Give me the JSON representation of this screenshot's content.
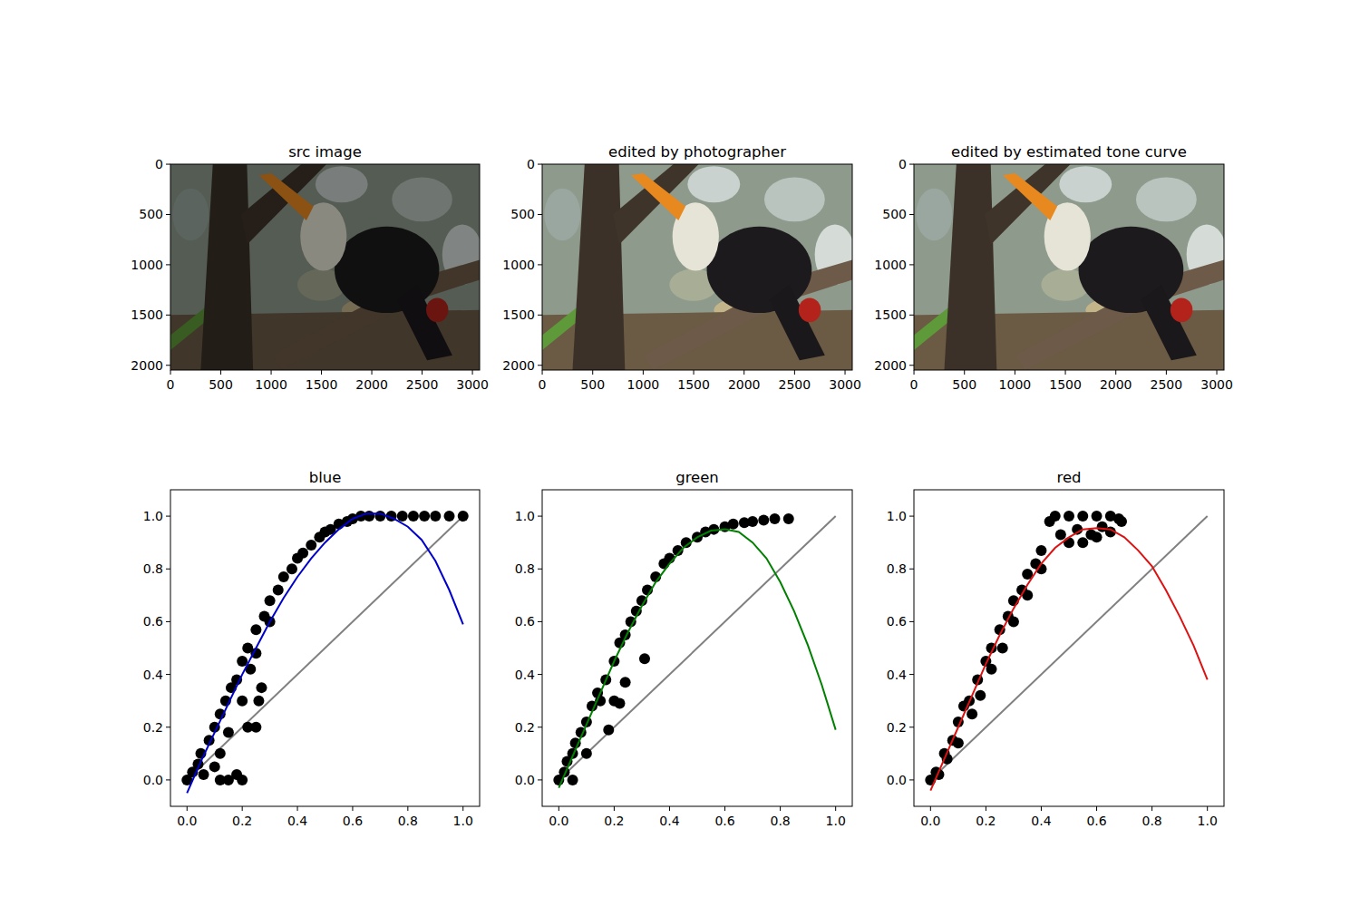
{
  "chart_data": [
    {
      "type": "image",
      "title": "src image",
      "xlim": [
        -0.5,
        3071.5
      ],
      "ylim": [
        2047.5,
        -0.5
      ],
      "xticks": [
        0,
        500,
        1000,
        1500,
        2000,
        2500,
        3000
      ],
      "yticks": [
        0,
        500,
        1000,
        1500,
        2000
      ]
    },
    {
      "type": "image",
      "title": "edited by photographer",
      "xlim": [
        -0.5,
        3071.5
      ],
      "ylim": [
        2047.5,
        -0.5
      ],
      "xticks": [
        0,
        500,
        1000,
        1500,
        2000,
        2500,
        3000
      ],
      "yticks": [
        0,
        500,
        1000,
        1500,
        2000
      ]
    },
    {
      "type": "image",
      "title": "edited by estimated tone curve",
      "xlim": [
        -0.5,
        3071.5
      ],
      "ylim": [
        2047.5,
        -0.5
      ],
      "xticks": [
        0,
        500,
        1000,
        1500,
        2000,
        2500,
        3000
      ],
      "yticks": [
        0,
        500,
        1000,
        1500,
        2000
      ]
    },
    {
      "type": "scatter",
      "title": "blue",
      "xlim": [
        -0.06,
        1.06
      ],
      "ylim": [
        -0.1,
        1.1
      ],
      "xticks": [
        {
          "value": 0,
          "label": "0.0"
        },
        0.2,
        0.4,
        0.6,
        0.8,
        {
          "value": 1,
          "label": "1.0"
        }
      ],
      "yticks": [
        {
          "value": 0,
          "label": "0.0"
        },
        0.2,
        0.4,
        0.6,
        0.8,
        {
          "value": 1,
          "label": "1.0"
        }
      ],
      "series": [
        {
          "type": "scatter",
          "color": "#000000",
          "marker": "circle",
          "x": [
            0,
            0.02,
            0.04,
            0.05,
            0.06,
            0.08,
            0.1,
            0.1,
            0.12,
            0.12,
            0.14,
            0.15,
            0.16,
            0.18,
            0.2,
            0.2,
            0.22,
            0.23,
            0.25,
            0.25,
            0.28,
            0.3,
            0.3,
            0.33,
            0.35,
            0.38,
            0.4,
            0.42,
            0.45,
            0.48,
            0.5,
            0.52,
            0.55,
            0.58,
            0.6,
            0.63,
            0.66,
            0.7,
            0.74,
            0.78,
            0.82,
            0.86,
            0.9,
            0.95,
            1.0,
            0.12,
            0.15,
            0.18,
            0.2,
            0.22,
            0.25,
            0.27,
            0.26
          ],
          "values": [
            0.0,
            0.03,
            0.06,
            0.1,
            0.02,
            0.15,
            0.2,
            0.05,
            0.25,
            0.1,
            0.3,
            0.18,
            0.35,
            0.38,
            0.45,
            0.3,
            0.5,
            0.42,
            0.57,
            0.48,
            0.62,
            0.68,
            0.6,
            0.72,
            0.77,
            0.8,
            0.84,
            0.86,
            0.89,
            0.92,
            0.94,
            0.95,
            0.97,
            0.98,
            0.99,
            1.0,
            1.0,
            1.0,
            1.0,
            1.0,
            1.0,
            1.0,
            1.0,
            1.0,
            1.0,
            0.0,
            0.0,
            0.02,
            0.0,
            0.2,
            0.2,
            0.35,
            0.3
          ]
        },
        {
          "type": "line",
          "color": "#0000cc",
          "line_style": "solid",
          "x": [
            0,
            0.05,
            0.1,
            0.15,
            0.2,
            0.25,
            0.3,
            0.35,
            0.4,
            0.45,
            0.5,
            0.55,
            0.6,
            0.65,
            0.7,
            0.75,
            0.8,
            0.85,
            0.9,
            0.95,
            1.0
          ],
          "values": [
            -0.05,
            0.07,
            0.18,
            0.29,
            0.4,
            0.5,
            0.6,
            0.69,
            0.77,
            0.84,
            0.9,
            0.95,
            0.99,
            1.01,
            1.01,
            0.99,
            0.96,
            0.91,
            0.83,
            0.72,
            0.59
          ]
        },
        {
          "type": "line",
          "color": "#808080",
          "line_style": "solid",
          "x": [
            0,
            1
          ],
          "values": [
            0,
            1
          ]
        }
      ]
    },
    {
      "type": "scatter",
      "title": "green",
      "xlim": [
        -0.06,
        1.06
      ],
      "ylim": [
        -0.1,
        1.1
      ],
      "xticks": [
        {
          "value": 0,
          "label": "0.0"
        },
        0.2,
        0.4,
        0.6,
        0.8,
        {
          "value": 1,
          "label": "1.0"
        }
      ],
      "yticks": [
        {
          "value": 0,
          "label": "0.0"
        },
        0.2,
        0.4,
        0.6,
        0.8,
        {
          "value": 1,
          "label": "1.0"
        }
      ],
      "series": [
        {
          "type": "scatter",
          "color": "#000000",
          "marker": "circle",
          "x": [
            0,
            0.02,
            0.03,
            0.05,
            0.06,
            0.08,
            0.1,
            0.12,
            0.14,
            0.15,
            0.17,
            0.2,
            0.22,
            0.24,
            0.26,
            0.28,
            0.3,
            0.32,
            0.35,
            0.38,
            0.4,
            0.43,
            0.46,
            0.5,
            0.53,
            0.56,
            0.6,
            0.63,
            0.67,
            0.7,
            0.74,
            0.78,
            0.83,
            0.05,
            0.1,
            0.18,
            0.2,
            0.22,
            0.24,
            0.31
          ],
          "values": [
            0,
            0.03,
            0.07,
            0.1,
            0.14,
            0.18,
            0.22,
            0.28,
            0.33,
            0.3,
            0.38,
            0.45,
            0.52,
            0.55,
            0.6,
            0.64,
            0.68,
            0.72,
            0.77,
            0.82,
            0.84,
            0.87,
            0.9,
            0.92,
            0.94,
            0.95,
            0.96,
            0.97,
            0.975,
            0.98,
            0.985,
            0.99,
            0.99,
            0.0,
            0.1,
            0.19,
            0.3,
            0.29,
            0.37,
            0.46
          ]
        },
        {
          "type": "line",
          "color": "#008000",
          "line_style": "solid",
          "x": [
            0,
            0.05,
            0.1,
            0.15,
            0.2,
            0.25,
            0.3,
            0.35,
            0.4,
            0.45,
            0.5,
            0.55,
            0.6,
            0.65,
            0.7,
            0.75,
            0.8,
            0.85,
            0.9,
            0.95,
            1.0
          ],
          "values": [
            -0.03,
            0.09,
            0.21,
            0.33,
            0.45,
            0.56,
            0.66,
            0.75,
            0.82,
            0.88,
            0.92,
            0.945,
            0.95,
            0.94,
            0.9,
            0.84,
            0.75,
            0.64,
            0.51,
            0.36,
            0.19
          ]
        },
        {
          "type": "line",
          "color": "#808080",
          "line_style": "solid",
          "x": [
            0,
            1
          ],
          "values": [
            0,
            1
          ]
        }
      ]
    },
    {
      "type": "scatter",
      "title": "red",
      "xlim": [
        -0.06,
        1.06
      ],
      "ylim": [
        -0.1,
        1.1
      ],
      "xticks": [
        {
          "value": 0,
          "label": "0.0"
        },
        0.2,
        0.4,
        0.6,
        0.8,
        {
          "value": 1,
          "label": "1.0"
        }
      ],
      "yticks": [
        {
          "value": 0,
          "label": "0.0"
        },
        0.2,
        0.4,
        0.6,
        0.8,
        {
          "value": 1,
          "label": "1.0"
        }
      ],
      "series": [
        {
          "type": "scatter",
          "color": "#000000",
          "marker": "circle",
          "x": [
            0,
            0.02,
            0.03,
            0.05,
            0.06,
            0.08,
            0.1,
            0.1,
            0.12,
            0.14,
            0.15,
            0.17,
            0.18,
            0.2,
            0.22,
            0.22,
            0.25,
            0.26,
            0.28,
            0.3,
            0.3,
            0.33,
            0.35,
            0.35,
            0.38,
            0.4,
            0.4,
            0.43,
            0.45,
            0.47,
            0.5,
            0.5,
            0.53,
            0.55,
            0.58,
            0.6,
            0.62,
            0.65,
            0.68,
            0.69,
            0.55,
            0.6,
            0.65
          ],
          "values": [
            0,
            0.03,
            0.02,
            0.1,
            0.08,
            0.15,
            0.22,
            0.14,
            0.28,
            0.3,
            0.25,
            0.38,
            0.32,
            0.45,
            0.5,
            0.42,
            0.57,
            0.5,
            0.62,
            0.68,
            0.6,
            0.72,
            0.78,
            0.7,
            0.82,
            0.87,
            0.8,
            0.98,
            1.0,
            0.93,
            1.0,
            0.9,
            0.95,
            1.0,
            0.93,
            1.0,
            0.96,
            1.0,
            0.99,
            0.98,
            0.9,
            0.92,
            0.94
          ]
        },
        {
          "type": "line",
          "color": "#dd1111",
          "line_style": "solid",
          "x": [
            0,
            0.05,
            0.1,
            0.15,
            0.2,
            0.25,
            0.3,
            0.35,
            0.4,
            0.45,
            0.5,
            0.55,
            0.6,
            0.65,
            0.7,
            0.75,
            0.8,
            0.85,
            0.9,
            0.95,
            1.0
          ],
          "values": [
            -0.04,
            0.08,
            0.2,
            0.32,
            0.44,
            0.55,
            0.65,
            0.74,
            0.82,
            0.88,
            0.92,
            0.95,
            0.955,
            0.95,
            0.92,
            0.87,
            0.81,
            0.72,
            0.62,
            0.51,
            0.38
          ]
        },
        {
          "type": "line",
          "color": "#808080",
          "line_style": "solid",
          "x": [
            0,
            1
          ],
          "values": [
            0,
            1
          ]
        }
      ]
    }
  ]
}
